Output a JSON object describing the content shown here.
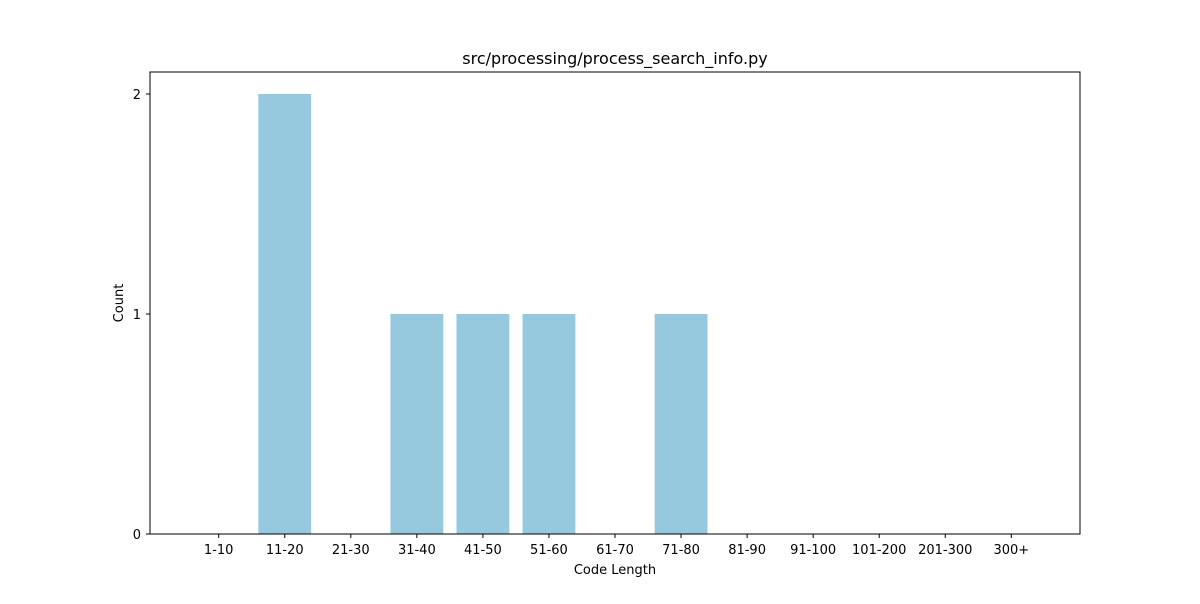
{
  "chart_data": {
    "type": "bar",
    "title": "src/processing/process_search_info.py",
    "xlabel": "Code Length",
    "ylabel": "Count",
    "categories": [
      "1-10",
      "11-20",
      "21-30",
      "31-40",
      "41-50",
      "51-60",
      "61-70",
      "71-80",
      "81-90",
      "91-100",
      "101-200",
      "201-300",
      "300+"
    ],
    "values": [
      0,
      2,
      0,
      1,
      1,
      1,
      0,
      1,
      0,
      0,
      0,
      0,
      0
    ],
    "ylim": [
      0,
      2.1
    ],
    "yticks": [
      0,
      1,
      2
    ],
    "grid": false,
    "legend": "none",
    "bar_color": "#96c9dd"
  }
}
